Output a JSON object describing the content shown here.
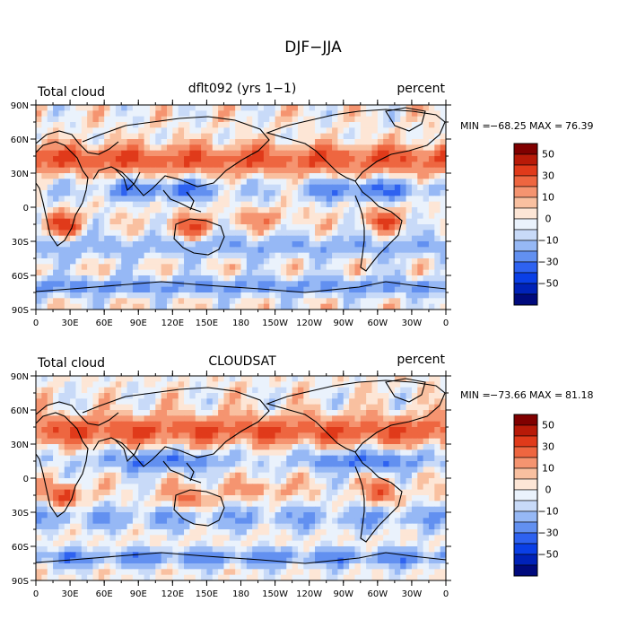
{
  "title": "DJF−JJA",
  "chart_data": [
    {
      "type": "heatmap",
      "left_label": "Total cloud",
      "center_label": "dflt092 (yrs 1−1)",
      "right_label": "percent",
      "stats": {
        "min_label": "MIN =",
        "min": "−68.25",
        "max_label": "MAX =",
        "max": "76.39"
      },
      "x_ticks": [
        "0",
        "30E",
        "60E",
        "90E",
        "120E",
        "150E",
        "180",
        "150W",
        "120W",
        "90W",
        "60W",
        "30W",
        "0"
      ],
      "y_ticks": [
        "90N",
        "60N",
        "30N",
        "0",
        "30S",
        "60S",
        "90S"
      ],
      "xlim": [
        0,
        360
      ],
      "ylim": [
        -90,
        90
      ],
      "colorbar_labels": [
        "50",
        "30",
        "10",
        "0",
        "−10",
        "−30",
        "−50"
      ],
      "colorbar_levels": [
        -60,
        -50,
        -40,
        -30,
        -20,
        -10,
        -5,
        0,
        5,
        10,
        20,
        30,
        40,
        50,
        60
      ]
    },
    {
      "type": "heatmap",
      "left_label": "Total cloud",
      "center_label": "CLOUDSAT",
      "right_label": "percent",
      "stats": {
        "min_label": "MIN =",
        "min": "−73.66",
        "max_label": "MAX =",
        "max": "81.18"
      },
      "x_ticks": [
        "0",
        "30E",
        "60E",
        "90E",
        "120E",
        "150E",
        "180",
        "150W",
        "120W",
        "90W",
        "60W",
        "30W",
        "0"
      ],
      "y_ticks": [
        "90N",
        "60N",
        "30N",
        "0",
        "30S",
        "60S",
        "90S"
      ],
      "xlim": [
        0,
        360
      ],
      "ylim": [
        -90,
        90
      ],
      "colorbar_labels": [
        "50",
        "30",
        "10",
        "0",
        "−10",
        "−30",
        "−50"
      ],
      "colorbar_levels": [
        -60,
        -50,
        -40,
        -30,
        -20,
        -10,
        -5,
        0,
        5,
        10,
        20,
        30,
        40,
        50,
        60
      ]
    }
  ],
  "colors": {
    "palette": [
      "#000a7d",
      "#0022b8",
      "#0a3fe6",
      "#2e62f0",
      "#6290f0",
      "#96b8f5",
      "#c8daf8",
      "#eaf2fc",
      "#fde6d6",
      "#f9c0a0",
      "#f59470",
      "#ee6640",
      "#e03a1a",
      "#b81a08",
      "#800000"
    ]
  }
}
